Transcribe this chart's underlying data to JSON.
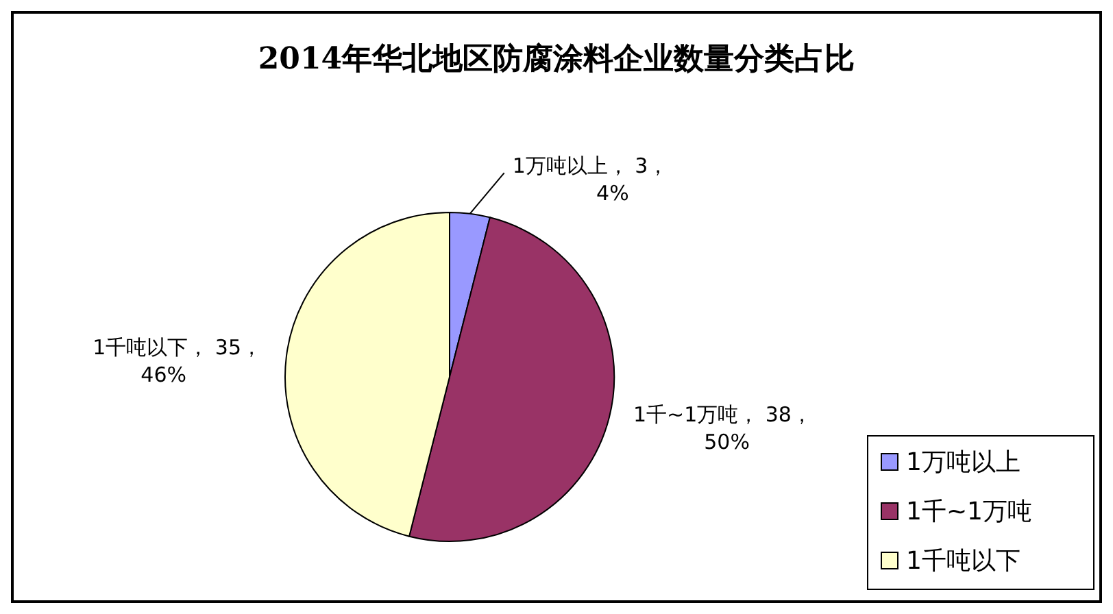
{
  "chart_data": {
    "type": "pie",
    "title": "2014年华北地区防腐涂料企业数量分类占比",
    "categories": [
      "1万吨以上",
      "1千~1万吨",
      "1千吨以下"
    ],
    "values": [
      3,
      38,
      35
    ],
    "colors": [
      "#9999ff",
      "#993366",
      "#ffffcc"
    ],
    "value_labels": [
      "， 3，\n4%",
      "， 38，\n50%",
      "， 35，\n46%"
    ],
    "legend": "bottom right"
  }
}
